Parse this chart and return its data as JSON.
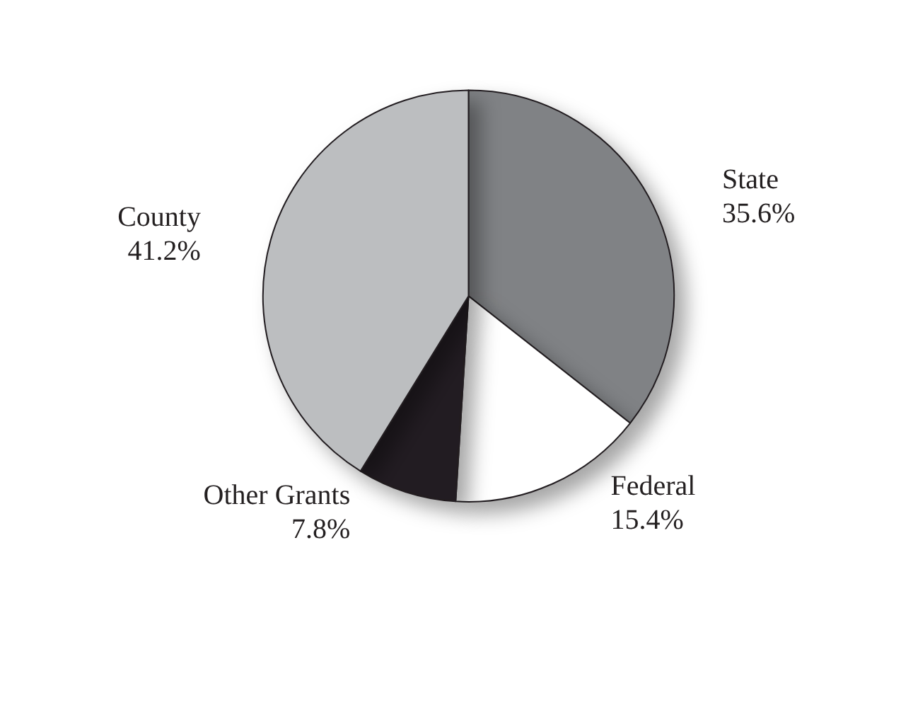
{
  "chart_data": {
    "type": "pie",
    "categories": [
      "State",
      "Federal",
      "Other Grants",
      "County"
    ],
    "values": [
      35.6,
      15.4,
      7.8,
      41.2
    ],
    "value_labels": [
      "35.6%",
      "15.4%",
      "7.8%",
      "41.2%"
    ],
    "colors": [
      "#808285",
      "#ffffff",
      "#231f20",
      "#bcbec0"
    ]
  }
}
